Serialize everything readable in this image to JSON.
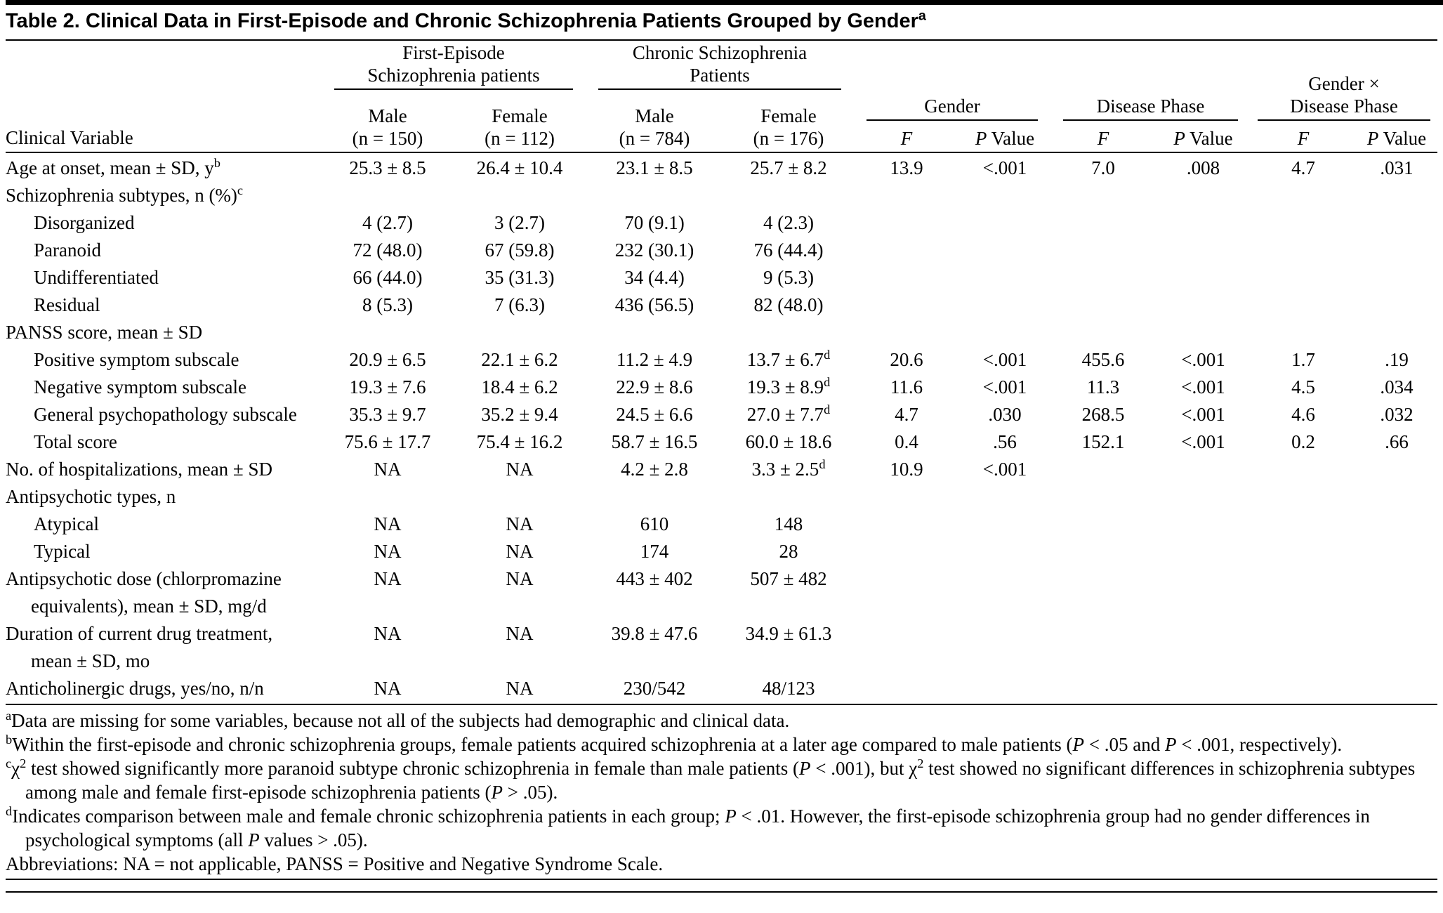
{
  "title": "Table 2. Clinical Data in First-Episode and Chronic Schizophrenia Patients Grouped by Gender^a",
  "header": {
    "clinical_variable": "Clinical Variable",
    "groups": [
      {
        "line1": "First-Episode",
        "line2": "Schizophrenia patients"
      },
      {
        "line1": "Chronic Schizophrenia",
        "line2": "Patients"
      }
    ],
    "subgroups": [
      {
        "line1": "Male",
        "line2": "(n = 150)"
      },
      {
        "line1": "Female",
        "line2": "(n = 112)"
      },
      {
        "line1": "Male",
        "line2": "(n = 784)"
      },
      {
        "line1": "Female",
        "line2": "(n = 176)"
      }
    ],
    "stat_groups": [
      {
        "label": "Gender"
      },
      {
        "label": "Disease Phase"
      },
      {
        "label": "Gender ×",
        "label2": "Disease Phase"
      }
    ],
    "stat_cols": [
      "F",
      "P Value",
      "F",
      "P Value",
      "F",
      "P Value"
    ]
  },
  "rows": [
    {
      "label": "Age at onset, mean ± SD, y^b",
      "cells": [
        "25.3 ± 8.5",
        "26.4 ± 10.4",
        "23.1 ± 8.5",
        "25.7 ± 8.2",
        "13.9",
        "<.001",
        "7.0",
        ".008",
        "4.7",
        ".031"
      ]
    },
    {
      "label": "Schizophrenia subtypes, n (%)^c",
      "cells": []
    },
    {
      "label": "Disorganized",
      "indent": 1,
      "cells": [
        "4 (2.7)",
        "3 (2.7)",
        "70 (9.1)",
        "4 (2.3)",
        "",
        "",
        "",
        "",
        "",
        ""
      ]
    },
    {
      "label": "Paranoid",
      "indent": 1,
      "cells": [
        "72 (48.0)",
        "67 (59.8)",
        "232 (30.1)",
        "76 (44.4)",
        "",
        "",
        "",
        "",
        "",
        ""
      ]
    },
    {
      "label": "Undifferentiated",
      "indent": 1,
      "cells": [
        "66 (44.0)",
        "35 (31.3)",
        "34 (4.4)",
        "9 (5.3)",
        "",
        "",
        "",
        "",
        "",
        ""
      ]
    },
    {
      "label": "Residual",
      "indent": 1,
      "cells": [
        "8 (5.3)",
        "7 (6.3)",
        "436 (56.5)",
        "82 (48.0)",
        "",
        "",
        "",
        "",
        "",
        ""
      ]
    },
    {
      "label": "PANSS score, mean ± SD",
      "cells": []
    },
    {
      "label": "Positive symptom subscale",
      "indent": 1,
      "cells": [
        "20.9 ± 6.5",
        "22.1 ± 6.2",
        "11.2 ± 4.9",
        "13.7 ± 6.7^d",
        "20.6",
        "<.001",
        "455.6",
        "<.001",
        "1.7",
        ".19"
      ]
    },
    {
      "label": "Negative symptom subscale",
      "indent": 1,
      "cells": [
        "19.3 ± 7.6",
        "18.4 ± 6.2",
        "22.9 ± 8.6",
        "19.3 ± 8.9^d",
        "11.6",
        "<.001",
        "11.3",
        "<.001",
        "4.5",
        ".034"
      ]
    },
    {
      "label": "General psychopathology subscale",
      "indent": 1,
      "cells": [
        "35.3 ± 9.7",
        "35.2 ± 9.4",
        "24.5 ± 6.6",
        "27.0 ± 7.7^d",
        "4.7",
        ".030",
        "268.5",
        "<.001",
        "4.6",
        ".032"
      ]
    },
    {
      "label": "Total score",
      "indent": 1,
      "cells": [
        "75.6 ± 17.7",
        "75.4 ± 16.2",
        "58.7 ± 16.5",
        "60.0 ± 18.6",
        "0.4",
        ".56",
        "152.1",
        "<.001",
        "0.2",
        ".66"
      ]
    },
    {
      "label": "No. of hospitalizations, mean ± SD",
      "cells": [
        "NA",
        "NA",
        "4.2 ± 2.8",
        "3.3 ± 2.5^d",
        "10.9",
        "<.001",
        "",
        "",
        "",
        ""
      ]
    },
    {
      "label": "Antipsychotic types, n",
      "cells": []
    },
    {
      "label": "Atypical",
      "indent": 1,
      "cells": [
        "NA",
        "NA",
        "610",
        "148",
        "",
        "",
        "",
        "",
        "",
        ""
      ]
    },
    {
      "label": "Typical",
      "indent": 1,
      "cells": [
        "NA",
        "NA",
        "174",
        "28",
        "",
        "",
        "",
        "",
        "",
        ""
      ]
    },
    {
      "label": "Antipsychotic dose (chlorpromazine",
      "label2": "equivalents), mean ± SD, mg/d",
      "cells": [
        "NA",
        "NA",
        "443 ± 402",
        "507 ± 482",
        "",
        "",
        "",
        "",
        "",
        ""
      ]
    },
    {
      "label": "Duration of current drug treatment,",
      "label2": "mean ± SD, mo",
      "cells": [
        "NA",
        "NA",
        "39.8 ± 47.6",
        "34.9 ± 61.3",
        "",
        "",
        "",
        "",
        "",
        ""
      ]
    },
    {
      "label": "Anticholinergic drugs, yes/no, n/n",
      "cells": [
        "NA",
        "NA",
        "230/542",
        "48/123",
        "",
        "",
        "",
        "",
        "",
        ""
      ]
    }
  ],
  "footnotes": [
    {
      "sup": "a",
      "text": "Data are missing for some variables, because not all of the subjects had demographic and clinical data."
    },
    {
      "sup": "b",
      "text": "Within the first-episode and chronic schizophrenia groups, female patients acquired schizophrenia at a later age compared to male patients (P < .05 and P < .001, respectively)."
    },
    {
      "sup": "c",
      "text": "χ^2 test showed significantly more paranoid subtype chronic schizophrenia in female than male patients (P < .001), but χ^2 test showed no significant differences in schizophrenia subtypes among male and female first-episode schizophrenia patients (P > .05)."
    },
    {
      "sup": "d",
      "text": "Indicates comparison between male and female chronic schizophrenia patients in each group; P < .01. However, the first-episode schizophrenia group had no gender differences in psychological symptoms (all P values > .05)."
    },
    {
      "sup": "",
      "text": "Abbreviations: NA = not applicable, PANSS = Positive and Negative Syndrome Scale."
    }
  ]
}
